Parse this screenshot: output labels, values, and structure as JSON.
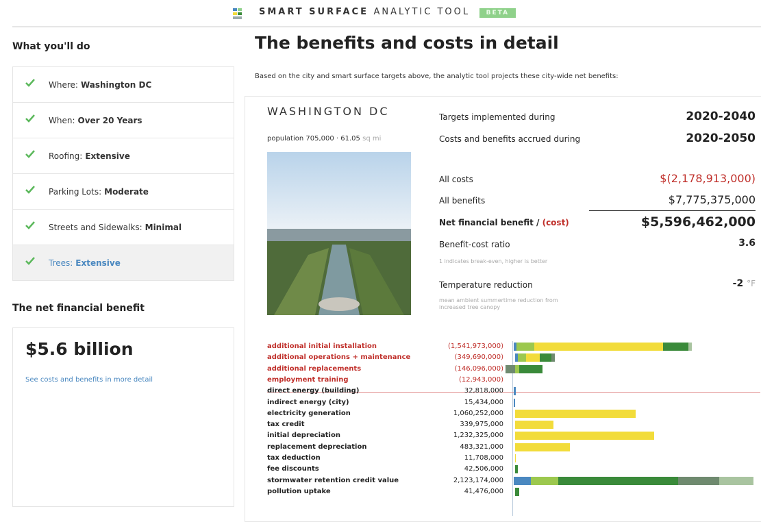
{
  "header": {
    "title_bold": "SMART SURFACE",
    "title_light": "ANALYTIC TOOL",
    "badge": "BETA"
  },
  "sidebar": {
    "heading": "What you'll do",
    "steps": [
      {
        "label": "Where:",
        "value": "Washington DC"
      },
      {
        "label": "When:",
        "value": "Over 20 Years"
      },
      {
        "label": "Roofing:",
        "value": "Extensive"
      },
      {
        "label": "Parking Lots:",
        "value": "Moderate"
      },
      {
        "label": "Streets and Sidewalks:",
        "value": "Minimal"
      },
      {
        "label": "Trees:",
        "value": "Extensive"
      }
    ],
    "net_heading": "The net financial benefit",
    "net_value": "$5.6 billion",
    "net_link": "See costs and benefits in more detail"
  },
  "main": {
    "title": "The benefits and costs in detail",
    "intro": "Based on the city and smart surface targets above, the analytic tool projects these city-wide net benefits:",
    "city": "WASHINGTON DC",
    "population": "population 705,000 · 61.05",
    "population_unit": "sq mi",
    "targets_label": "Targets implemented during",
    "targets_value": "2020-2040",
    "accrued_label": "Costs and benefits accrued during",
    "accrued_value": "2020-2050",
    "costs_label": "All costs",
    "costs_value": "$(2,178,913,000)",
    "benefits_label": "All benefits",
    "benefits_value": "$7,775,375,000",
    "net_label": "Net financial benefit /",
    "net_label_cost": "(cost)",
    "net_value": "$5,596,462,000",
    "ratio_label": "Benefit-cost ratio",
    "ratio_value": "3.6",
    "ratio_note": "1 indicates break-even, higher is better",
    "temp_label": "Temperature reduction",
    "temp_value": "-2",
    "temp_unit": "°F",
    "temp_note": "mean ambient summertime reduction from increased tree canopy"
  },
  "table": {
    "rows": [
      {
        "label": "additional initial installation",
        "amount": "(1,541,973,000)"
      },
      {
        "label": "additional operations + maintenance",
        "amount": "(349,690,000)"
      },
      {
        "label": "additional replacements",
        "amount": "(146,096,000)"
      },
      {
        "label": "employment training",
        "amount": "(12,943,000)"
      },
      {
        "label": "direct energy (building)",
        "amount": "32,818,000"
      },
      {
        "label": "indirect energy (city)",
        "amount": "15,434,000"
      },
      {
        "label": "electricity generation",
        "amount": "1,060,252,000"
      },
      {
        "label": "tax credit",
        "amount": "339,975,000"
      },
      {
        "label": "initial depreciation",
        "amount": "1,232,325,000"
      },
      {
        "label": "replacement depreciation",
        "amount": "483,321,000"
      },
      {
        "label": "tax deduction",
        "amount": "11,708,000"
      },
      {
        "label": "fee discounts",
        "amount": "42,506,000"
      },
      {
        "label": "stormwater retention credit value",
        "amount": "2,123,174,000"
      },
      {
        "label": "pollution uptake",
        "amount": "41,476,000"
      }
    ]
  }
}
